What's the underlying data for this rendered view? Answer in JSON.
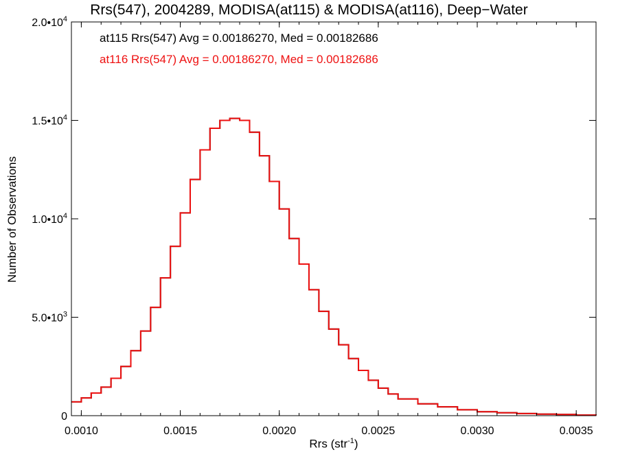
{
  "chart_data": {
    "type": "line",
    "title": "Rrs(547), 2004289, MODISA(at115) & MODISA(at116), Deep−Water",
    "xlabel": "Rrs (str",
    "xlabel_sup": "-1",
    "xlabel_close": ")",
    "ylabel": "Number of Observations",
    "xlim": [
      0.00095,
      0.0036
    ],
    "ylim": [
      0,
      20000
    ],
    "xticks": [
      {
        "v": 0.001,
        "label": "0.0010"
      },
      {
        "v": 0.0015,
        "label": "0.0015"
      },
      {
        "v": 0.002,
        "label": "0.0020"
      },
      {
        "v": 0.0025,
        "label": "0.0025"
      },
      {
        "v": 0.003,
        "label": "0.0030"
      },
      {
        "v": 0.0035,
        "label": "0.0035"
      }
    ],
    "yticks": [
      {
        "v": 0,
        "base": "0",
        "exp": ""
      },
      {
        "v": 5000,
        "base": "5.0•10",
        "exp": "3"
      },
      {
        "v": 10000,
        "base": "1.0•10",
        "exp": "4"
      },
      {
        "v": 15000,
        "base": "1.5•10",
        "exp": "4"
      },
      {
        "v": 20000,
        "base": "2.0•10",
        "exp": "4"
      }
    ],
    "grid": false,
    "legend_position": "top-left",
    "series": [
      {
        "name": "at115 Rrs(547) Avg = 0.00186270, Med = 0.00182686",
        "color": "#000000",
        "x": [
          0.00095,
          0.001,
          0.00105,
          0.0011,
          0.00115,
          0.0012,
          0.00125,
          0.0013,
          0.00135,
          0.0014,
          0.00145,
          0.0015,
          0.00155,
          0.0016,
          0.00165,
          0.0017,
          0.00175,
          0.0018,
          0.00185,
          0.0019,
          0.00195,
          0.002,
          0.00205,
          0.0021,
          0.00215,
          0.0022,
          0.00225,
          0.0023,
          0.00235,
          0.0024,
          0.00245,
          0.0025,
          0.00255,
          0.0026,
          0.0027,
          0.0028,
          0.0029,
          0.003,
          0.0031,
          0.0032,
          0.0033,
          0.0034,
          0.0035,
          0.0036
        ],
        "y": [
          700,
          900,
          1150,
          1450,
          1900,
          2500,
          3300,
          4300,
          5500,
          7000,
          8600,
          10300,
          12000,
          13500,
          14600,
          15000,
          15100,
          15000,
          14400,
          13200,
          11900,
          10500,
          9000,
          7700,
          6400,
          5300,
          4400,
          3600,
          2900,
          2300,
          1800,
          1400,
          1100,
          850,
          600,
          450,
          300,
          200,
          150,
          110,
          80,
          60,
          30,
          20
        ]
      },
      {
        "name": "at116 Rrs(547) Avg = 0.00186270, Med = 0.00182686",
        "color": "#ee1111",
        "x": [
          0.00095,
          0.001,
          0.00105,
          0.0011,
          0.00115,
          0.0012,
          0.00125,
          0.0013,
          0.00135,
          0.0014,
          0.00145,
          0.0015,
          0.00155,
          0.0016,
          0.00165,
          0.0017,
          0.00175,
          0.0018,
          0.00185,
          0.0019,
          0.00195,
          0.002,
          0.00205,
          0.0021,
          0.00215,
          0.0022,
          0.00225,
          0.0023,
          0.00235,
          0.0024,
          0.00245,
          0.0025,
          0.00255,
          0.0026,
          0.0027,
          0.0028,
          0.0029,
          0.003,
          0.0031,
          0.0032,
          0.0033,
          0.0034,
          0.0035,
          0.0036
        ],
        "y": [
          700,
          900,
          1150,
          1450,
          1900,
          2500,
          3300,
          4300,
          5500,
          7000,
          8600,
          10300,
          12000,
          13500,
          14600,
          15000,
          15100,
          15000,
          14400,
          13200,
          11900,
          10500,
          9000,
          7700,
          6400,
          5300,
          4400,
          3600,
          2900,
          2300,
          1800,
          1400,
          1100,
          850,
          600,
          450,
          300,
          200,
          150,
          110,
          80,
          60,
          30,
          20
        ]
      }
    ]
  }
}
